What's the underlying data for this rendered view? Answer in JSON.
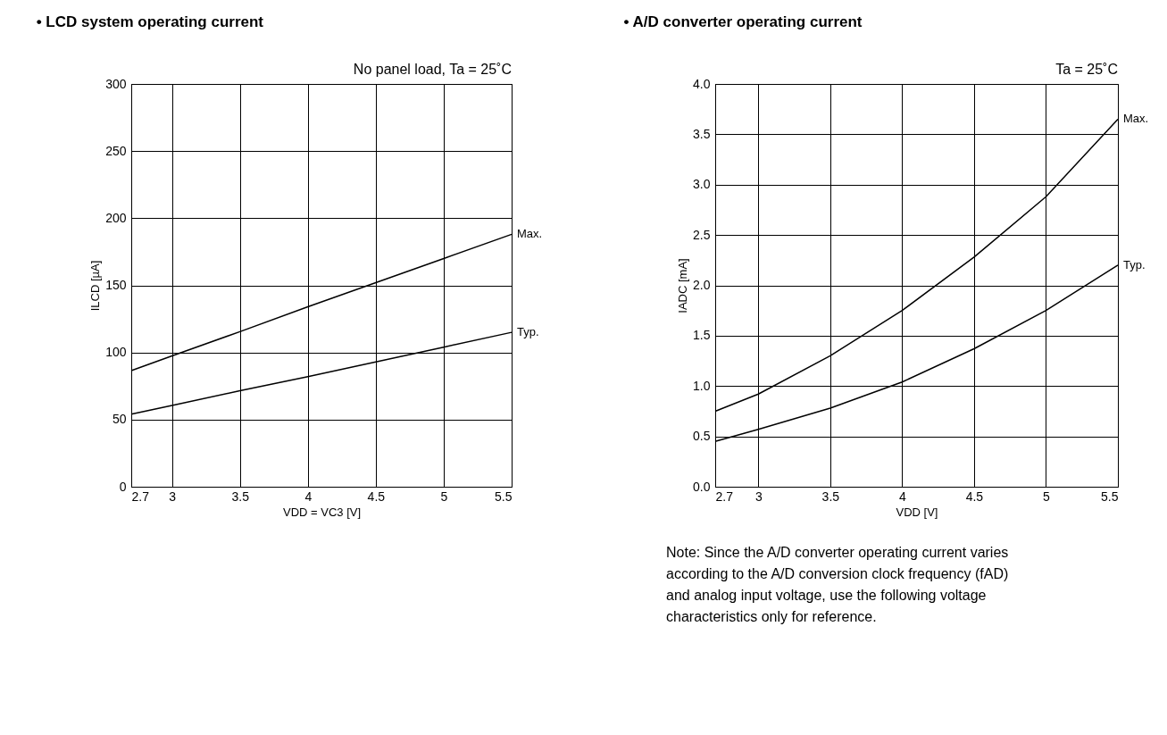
{
  "chart_data": [
    {
      "type": "line",
      "title": "• LCD system operating current",
      "subtitle": "No panel load, Ta = 25˚C",
      "xlabel": "VDD = VC3 [V]",
      "ylabel": "ILCD [µA]",
      "x": [
        2.7,
        3,
        3.5,
        4,
        4.5,
        5,
        5.5
      ],
      "series": [
        {
          "name": "Max.",
          "color": "#000000",
          "values": [
            86.5,
            97.5,
            115.5,
            134,
            152,
            170,
            188
          ]
        },
        {
          "name": "Typ.",
          "color": "#000000",
          "values": [
            54,
            60.5,
            71.5,
            82,
            93,
            104,
            115
          ]
        }
      ],
      "xlim": [
        2.7,
        5.5
      ],
      "xticks": [
        2.7,
        3,
        3.5,
        4,
        4.5,
        5,
        5.5
      ],
      "ylim": [
        0,
        300
      ],
      "yticks": [
        0,
        50,
        100,
        150,
        200,
        250,
        300
      ],
      "grid": true,
      "legend": false
    },
    {
      "type": "line",
      "title": "• A/D converter operating current",
      "subtitle": "Ta = 25˚C",
      "xlabel": "VDD [V]",
      "ylabel": "IADC [mA]",
      "x": [
        2.7,
        3,
        3.5,
        4,
        4.5,
        5,
        5.5
      ],
      "series": [
        {
          "name": "Max.",
          "color": "#000000",
          "values": [
            0.75,
            0.92,
            1.3,
            1.75,
            2.28,
            2.88,
            3.65
          ]
        },
        {
          "name": "Typ.",
          "color": "#000000",
          "values": [
            0.45,
            0.57,
            0.78,
            1.04,
            1.37,
            1.75,
            2.2
          ]
        }
      ],
      "xlim": [
        2.7,
        5.5
      ],
      "xticks": [
        2.7,
        3,
        3.5,
        4,
        4.5,
        5,
        5.5
      ],
      "ylim": [
        0,
        4
      ],
      "yticks": [
        {
          "value": 0,
          "label": "0.0"
        },
        0.5,
        {
          "value": 1,
          "label": "1.0"
        },
        1.5,
        {
          "value": 2,
          "label": "2.0"
        },
        2.5,
        {
          "value": 3,
          "label": "3.0"
        },
        3.5,
        {
          "value": 4,
          "label": "4.0"
        }
      ],
      "grid": true,
      "legend": false,
      "annotations": [
        "Note:  Since the A/D converter operating current varies according to the A/D conversion clock frequency (fAD) and analog input voltage, use the following voltage characteristics only for reference."
      ]
    }
  ]
}
